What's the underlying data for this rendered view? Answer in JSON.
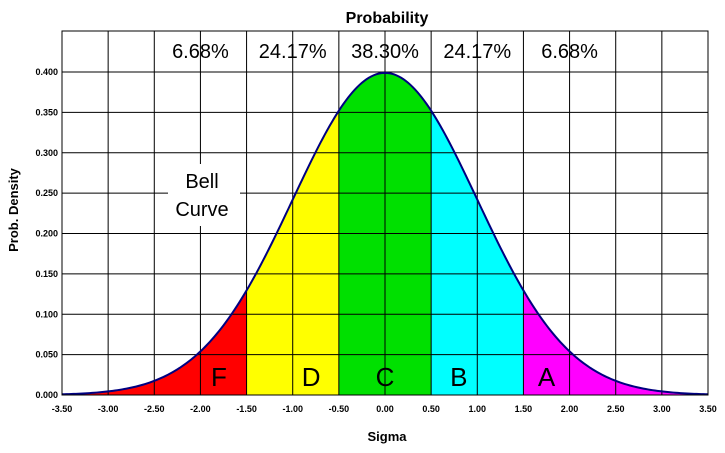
{
  "chart_data": {
    "type": "area",
    "title": "Probability",
    "xlabel": "Sigma",
    "ylabel": "Prob. Density",
    "xlim": [
      -3.5,
      3.5
    ],
    "ylim": [
      0,
      0.4
    ],
    "grid": true,
    "x_ticks": [
      "-3.50",
      "-3.00",
      "-2.50",
      "-2.00",
      "-1.50",
      "-1.00",
      "-0.50",
      "0.00",
      "0.50",
      "1.00",
      "1.50",
      "2.00",
      "2.50",
      "3.00",
      "3.50"
    ],
    "y_ticks": [
      "0.000",
      "0.050",
      "0.100",
      "0.150",
      "0.200",
      "0.250",
      "0.300",
      "0.350",
      "0.400"
    ],
    "curve": {
      "x": [
        -3.5,
        -3.0,
        -2.5,
        -2.0,
        -1.5,
        -1.0,
        -0.5,
        0.0,
        0.5,
        1.0,
        1.5,
        2.0,
        2.5,
        3.0,
        3.5
      ],
      "y": [
        0.001,
        0.004,
        0.018,
        0.054,
        0.13,
        0.242,
        0.352,
        0.399,
        0.352,
        0.242,
        0.13,
        0.054,
        0.018,
        0.004,
        0.001
      ]
    },
    "regions": [
      {
        "grade": "F",
        "from": -3.5,
        "to": -1.5,
        "color": "#ff0000",
        "percent": "6.68%"
      },
      {
        "grade": "D",
        "from": -1.5,
        "to": -0.5,
        "color": "#ffff00",
        "percent": "24.17%"
      },
      {
        "grade": "C",
        "from": -0.5,
        "to": 0.5,
        "color": "#00e000",
        "percent": "38.30%"
      },
      {
        "grade": "B",
        "from": 0.5,
        "to": 1.5,
        "color": "#00ffff",
        "percent": "24.17%"
      },
      {
        "grade": "A",
        "from": 1.5,
        "to": 3.5,
        "color": "#ff00ff",
        "percent": "6.68%"
      }
    ],
    "annotation": [
      "Bell",
      "Curve"
    ],
    "curve_color": "#000080"
  }
}
